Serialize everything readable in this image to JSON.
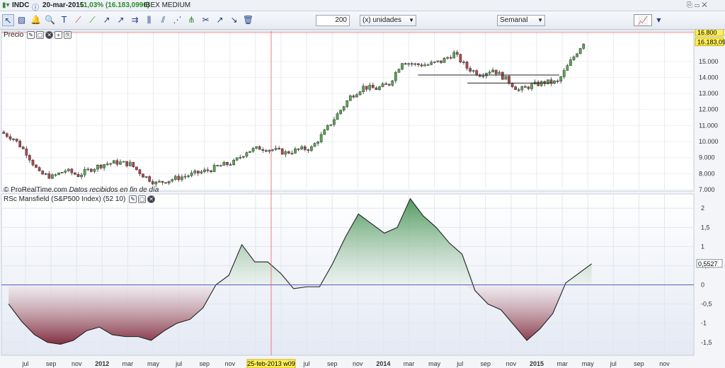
{
  "header": {
    "symbol": "INDC",
    "date": "20-mar-2015",
    "change": "+1,03% (16.183,0996)",
    "market": "IBEX MEDIUM"
  },
  "toolbar": {
    "quantity": "200",
    "units_label": "(x) unidades",
    "period": "Semanal"
  },
  "price_panel": {
    "title": "Precio",
    "credit": "© ProRealTime.com",
    "credit_note": "Datos recibidos en fin de día",
    "last_price_label": "16.183,09",
    "ref_level_label": "16.800",
    "ref_level": 16800,
    "axis_ticks": [
      "15.000",
      "14.000",
      "13.000",
      "12.000",
      "11.000",
      "10.000",
      "9.000",
      "8.000",
      "7.000"
    ]
  },
  "rsc_panel": {
    "title": "RSc Mansfield (S&P500 Index) (52 10)",
    "last_value_label": "0,5527",
    "axis_ticks": [
      "2",
      "1,5",
      "1",
      "0,5",
      "0",
      "-0,5",
      "-1",
      "-1,5"
    ]
  },
  "x_axis": {
    "labels": [
      "jul",
      "sep",
      "nov",
      "2012",
      "mar",
      "may",
      "jul",
      "sep",
      "nov",
      "2013",
      "may",
      "jul",
      "sep",
      "nov",
      "2014",
      "mar",
      "may",
      "jul",
      "sep",
      "nov",
      "2015",
      "mar",
      "may",
      "jul",
      "sep",
      "nov"
    ],
    "cursor_label": "25-feb-2013 w09"
  },
  "colors": {
    "up": "#5aa850",
    "down": "#b3454d",
    "zero_line": "#5560c8",
    "cursor_line": "#e06070",
    "pos_fill": "#4a9a55",
    "neg_fill": "#8c3040"
  },
  "chart_data": [
    {
      "type": "candlestick",
      "title": "Precio",
      "x": [
        "2011-06",
        "2011-07",
        "2011-08",
        "2011-09",
        "2011-10",
        "2011-11",
        "2011-12",
        "2012-01",
        "2012-02",
        "2012-03",
        "2012-04",
        "2012-05",
        "2012-06",
        "2012-07",
        "2012-08",
        "2012-09",
        "2012-10",
        "2012-11",
        "2012-12",
        "2013-01",
        "2013-02",
        "2013-03",
        "2013-04",
        "2013-05",
        "2013-06",
        "2013-07",
        "2013-08",
        "2013-09",
        "2013-10",
        "2013-11",
        "2013-12",
        "2014-01",
        "2014-02",
        "2014-03",
        "2014-04",
        "2014-05",
        "2014-06",
        "2014-07",
        "2014-08",
        "2014-09",
        "2014-10",
        "2014-11",
        "2014-12",
        "2015-01",
        "2015-02",
        "2015-03"
      ],
      "close": [
        10.6,
        10.2,
        9.3,
        8.0,
        7.8,
        8.2,
        7.9,
        8.3,
        8.6,
        8.7,
        8.6,
        7.9,
        7.4,
        7.6,
        7.8,
        8.0,
        8.2,
        8.5,
        8.7,
        9.4,
        9.6,
        9.5,
        9.3,
        9.5,
        9.6,
        10.6,
        11.7,
        12.8,
        13.4,
        13.3,
        13.6,
        15.0,
        14.8,
        14.8,
        15.0,
        15.5,
        14.6,
        14.2,
        14.5,
        13.9,
        13.2,
        13.5,
        13.7,
        13.7,
        15.0,
        16.2
      ],
      "ylim": [
        7000,
        16800
      ],
      "hlines": [
        14150,
        13650
      ]
    },
    {
      "type": "area",
      "title": "RSc Mansfield (S&P500 Index) (52 10)",
      "x": [
        "2011-06",
        "2011-07",
        "2011-08",
        "2011-09",
        "2011-10",
        "2011-11",
        "2011-12",
        "2012-01",
        "2012-02",
        "2012-03",
        "2012-04",
        "2012-05",
        "2012-06",
        "2012-07",
        "2012-08",
        "2012-09",
        "2012-10",
        "2012-11",
        "2012-12",
        "2013-01",
        "2013-02",
        "2013-03",
        "2013-04",
        "2013-05",
        "2013-06",
        "2013-07",
        "2013-08",
        "2013-09",
        "2013-10",
        "2013-11",
        "2013-12",
        "2014-01",
        "2014-02",
        "2014-03",
        "2014-04",
        "2014-05",
        "2014-06",
        "2014-07",
        "2014-08",
        "2014-09",
        "2014-10",
        "2014-11",
        "2014-12",
        "2015-01",
        "2015-02",
        "2015-03"
      ],
      "values": [
        -0.5,
        -0.95,
        -1.3,
        -1.5,
        -1.55,
        -1.45,
        -1.2,
        -1.1,
        -1.3,
        -1.35,
        -1.35,
        -1.45,
        -1.2,
        -1.0,
        -0.9,
        -0.6,
        0.0,
        0.25,
        1.05,
        0.6,
        0.6,
        0.3,
        -0.1,
        -0.05,
        -0.05,
        0.55,
        1.25,
        1.85,
        1.6,
        1.35,
        1.5,
        2.25,
        1.8,
        1.5,
        1.1,
        0.8,
        -0.15,
        -0.5,
        -0.65,
        -1.05,
        -1.45,
        -1.15,
        -0.75,
        0.05,
        0.3,
        0.55
      ],
      "ylim": [
        -1.8,
        2.3
      ]
    }
  ]
}
